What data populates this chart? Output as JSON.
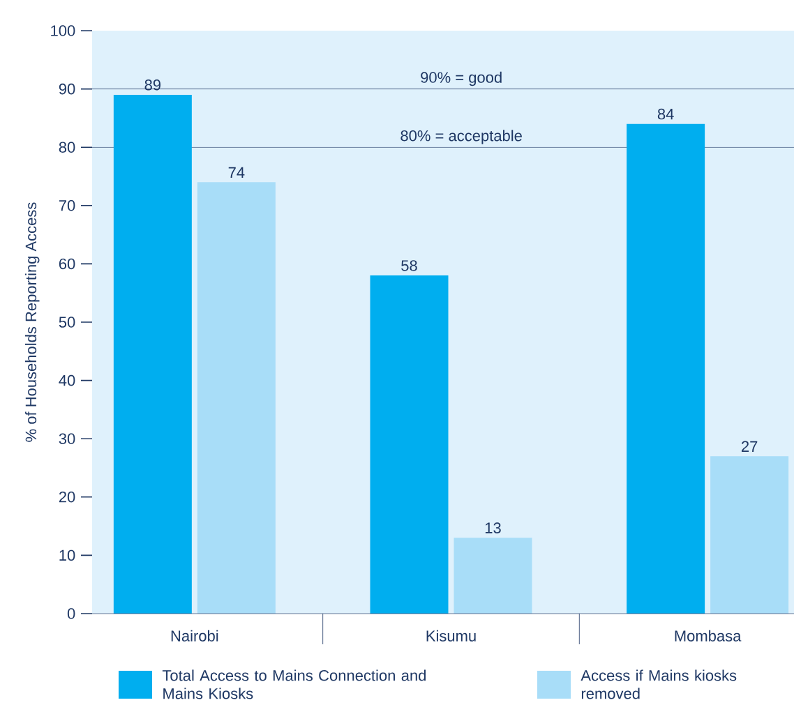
{
  "chart_data": {
    "type": "bar",
    "ylabel": "% of Households Reporting Access",
    "categories": [
      "Nairobi",
      "Kisumu",
      "Mombasa"
    ],
    "series": [
      {
        "name": "Total Access to Mains Connection and Mains Kiosks",
        "color": "#00aeef",
        "values": [
          89,
          58,
          84
        ]
      },
      {
        "name": "Access if Mains kiosks removed",
        "color": "#a8ddf8",
        "values": [
          74,
          13,
          27
        ]
      }
    ],
    "ylim": [
      0,
      100
    ],
    "yticks": [
      0,
      10,
      20,
      30,
      40,
      50,
      60,
      70,
      80,
      90,
      100
    ],
    "ref_lines": [
      {
        "axis": "y",
        "value": 90,
        "label": "90% = good",
        "color": "#1f3864"
      },
      {
        "axis": "y",
        "value": 80,
        "label": "80% = acceptable",
        "color": "#1f3864"
      }
    ],
    "data_labels": true,
    "legend": "bottom",
    "grid": false
  }
}
